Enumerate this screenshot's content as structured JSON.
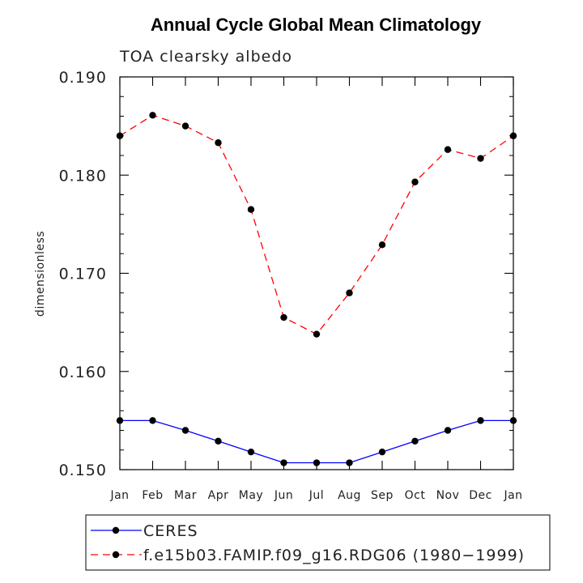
{
  "chart_data": {
    "type": "line",
    "title": "Annual Cycle Global Mean Climatology",
    "subtitle": "TOA clearsky albedo",
    "ylabel": "dimensionless",
    "xlabel": "",
    "categories": [
      "Jan",
      "Feb",
      "Mar",
      "Apr",
      "May",
      "Jun",
      "Jul",
      "Aug",
      "Sep",
      "Oct",
      "Nov",
      "Dec",
      "Jan"
    ],
    "ylim": [
      0.15,
      0.19
    ],
    "yticks": [
      "0.150",
      "0.160",
      "0.170",
      "0.180",
      "0.190"
    ],
    "grid": false,
    "legend_position": "bottom",
    "series": [
      {
        "name": "CERES",
        "color": "#0000ff",
        "dash": "solid",
        "marker": "filled-circle",
        "values": [
          0.155,
          0.155,
          0.154,
          0.1529,
          0.1518,
          0.1507,
          0.1507,
          0.1507,
          0.1518,
          0.1529,
          0.154,
          0.155,
          0.155
        ]
      },
      {
        "name": "f.e15b03.FAMIP.f09_g16.RDG06 (1980−1999)",
        "color": "#ff0000",
        "dash": "dashed",
        "marker": "filled-circle",
        "values": [
          0.184,
          0.1861,
          0.185,
          0.1833,
          0.1765,
          0.1655,
          0.1638,
          0.168,
          0.1729,
          0.1793,
          0.1826,
          0.1817,
          0.184
        ]
      }
    ]
  }
}
